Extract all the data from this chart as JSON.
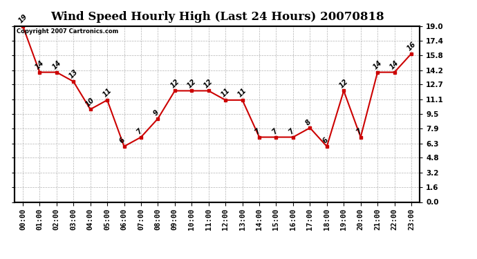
{
  "title": "Wind Speed Hourly High (Last 24 Hours) 20070818",
  "copyright_text": "Copyright 2007 Cartronics.com",
  "hours": [
    "00:00",
    "01:00",
    "02:00",
    "03:00",
    "04:00",
    "05:00",
    "06:00",
    "07:00",
    "08:00",
    "09:00",
    "10:00",
    "11:00",
    "12:00",
    "13:00",
    "14:00",
    "15:00",
    "16:00",
    "17:00",
    "18:00",
    "19:00",
    "20:00",
    "21:00",
    "22:00",
    "23:00"
  ],
  "values": [
    19,
    14,
    14,
    13,
    10,
    11,
    6,
    7,
    9,
    12,
    12,
    12,
    11,
    11,
    7,
    7,
    7,
    8,
    6,
    12,
    7,
    14,
    14,
    16
  ],
  "ylim": [
    0.0,
    19.0
  ],
  "yticks": [
    0.0,
    1.6,
    3.2,
    4.8,
    6.3,
    7.9,
    9.5,
    11.1,
    12.7,
    14.2,
    15.8,
    17.4,
    19.0
  ],
  "line_color": "#cc0000",
  "marker_color": "#cc0000",
  "bg_color": "#ffffff",
  "plot_bg_color": "#ffffff",
  "grid_color": "#aaaaaa",
  "title_fontsize": 12,
  "label_fontsize": 7.5,
  "annotation_fontsize": 7
}
